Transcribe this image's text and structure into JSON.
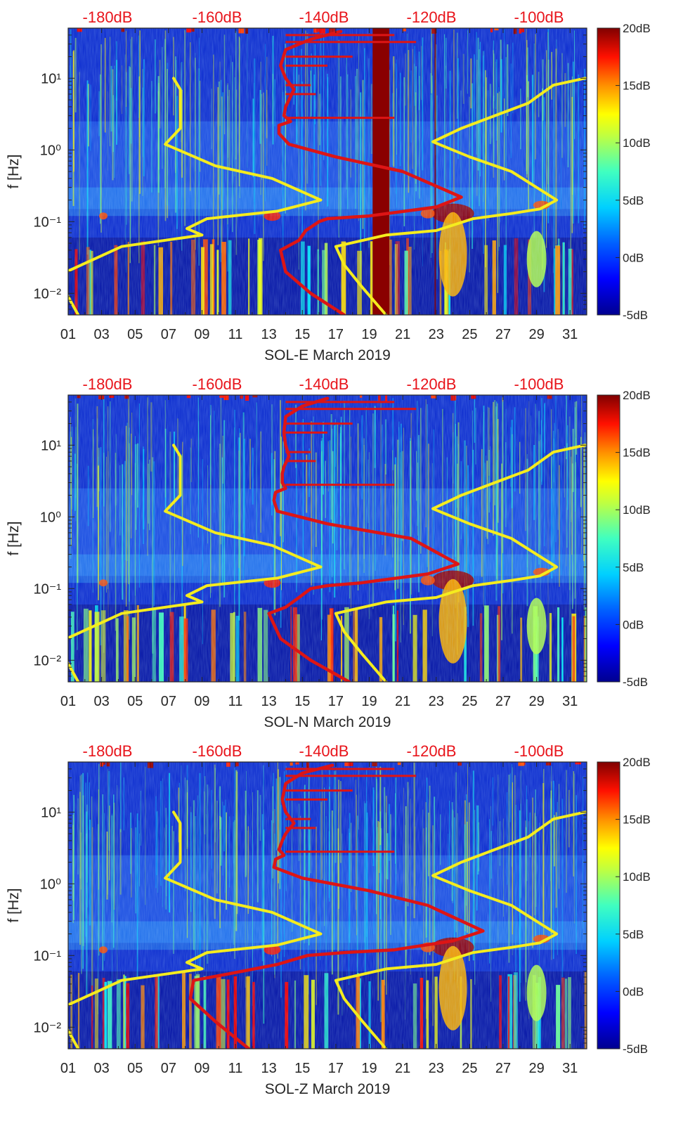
{
  "colors": {
    "jet": [
      "#00008f",
      "#0000ff",
      "#0080ff",
      "#00ffff",
      "#80ff80",
      "#ffff00",
      "#ff8000",
      "#ff0000",
      "#800000"
    ],
    "background": "#1030d0",
    "yellow_line": "#f5ec1e",
    "red_line": "#dd1515",
    "db_text": "#e8141b"
  },
  "chart_data": [
    {
      "type": "heatmap",
      "title": "",
      "xlabel": "SOL-E March 2019",
      "ylabel": "f [Hz]",
      "xlim": [
        1,
        32
      ],
      "ylim": [
        0.005,
        50
      ],
      "yscale": "log",
      "xticks": [
        "01",
        "03",
        "05",
        "07",
        "09",
        "11",
        "13",
        "15",
        "17",
        "19",
        "21",
        "23",
        "25",
        "27",
        "29",
        "31"
      ],
      "yticks": [
        "10⁻²",
        "10⁻¹",
        "10⁰",
        "10¹"
      ],
      "top_labels": [
        "-180dB",
        "-160dB",
        "-140dB",
        "-120dB",
        "-100dB"
      ],
      "colorbar": {
        "range": [
          -5,
          20
        ],
        "labels": [
          "20dB",
          "15dB",
          "10dB",
          "5dB",
          "0dB",
          "-5dB"
        ]
      },
      "saturated_band": {
        "x": [
          19.2,
          20.2
        ],
        "value": 20
      },
      "series": [
        {
          "color": "yellow",
          "x": [
            7.3,
            7.7,
            7.7,
            7.7,
            6.8,
            9.8,
            13.2,
            16.1,
            13.5,
            9.3,
            8.1,
            9.0,
            4.2,
            0.9,
            0.7,
            1.6
          ],
          "y": [
            10,
            7,
            3,
            2,
            1.2,
            0.6,
            0.4,
            0.2,
            0.14,
            0.11,
            0.08,
            0.065,
            0.045,
            0.02,
            0.012,
            0.005
          ]
        },
        {
          "color": "yellow",
          "x": [
            31.9,
            30.0,
            28.5,
            26.5,
            24.5,
            22.8,
            25.0,
            27.5,
            30.2,
            29.2,
            27.5,
            25.2,
            23.0,
            20.0,
            17.0,
            17.5,
            18.6,
            20.0
          ],
          "y": [
            10,
            8,
            4.5,
            3,
            2,
            1.3,
            0.8,
            0.5,
            0.2,
            0.15,
            0.13,
            0.11,
            0.075,
            0.065,
            0.045,
            0.025,
            0.012,
            0.005
          ]
        },
        {
          "color": "red",
          "x": [
            17.3,
            15.5,
            14.0,
            13.7,
            14.0,
            14.5,
            14.2,
            14.0,
            13.9,
            14.3,
            13.6,
            13.6,
            14.2,
            17.0,
            21.0,
            24.5,
            23.0,
            19.0,
            16.5,
            16.0,
            15.2,
            14.8,
            13.7,
            14.0,
            15.5,
            17.5
          ],
          "y": [
            45,
            35,
            25,
            15,
            10,
            7,
            5,
            4,
            3,
            2.5,
            2.2,
            1.7,
            1.2,
            0.8,
            0.5,
            0.22,
            0.16,
            0.12,
            0.11,
            0.1,
            0.075,
            0.055,
            0.04,
            0.02,
            0.01,
            0.005
          ]
        }
      ]
    },
    {
      "type": "heatmap",
      "title": "",
      "xlabel": "SOL-N March 2019",
      "ylabel": "f [Hz]",
      "xlim": [
        1,
        32
      ],
      "ylim": [
        0.005,
        50
      ],
      "yscale": "log",
      "xticks": [
        "01",
        "03",
        "05",
        "07",
        "09",
        "11",
        "13",
        "15",
        "17",
        "19",
        "21",
        "23",
        "25",
        "27",
        "29",
        "31"
      ],
      "yticks": [
        "10⁻²",
        "10⁻¹",
        "10⁰",
        "10¹"
      ],
      "top_labels": [
        "-180dB",
        "-160dB",
        "-140dB",
        "-120dB",
        "-100dB"
      ],
      "colorbar": {
        "range": [
          -5,
          20
        ],
        "labels": [
          "20dB",
          "15dB",
          "10dB",
          "5dB",
          "0dB",
          "-5dB"
        ]
      },
      "series": [
        {
          "color": "yellow",
          "x": [
            7.3,
            7.7,
            7.7,
            7.7,
            6.8,
            9.8,
            13.2,
            16.1,
            13.5,
            9.3,
            8.1,
            9.0,
            4.2,
            0.9,
            0.7,
            1.6
          ],
          "y": [
            10,
            7,
            3,
            2,
            1.2,
            0.6,
            0.4,
            0.2,
            0.14,
            0.11,
            0.08,
            0.065,
            0.045,
            0.02,
            0.012,
            0.005
          ]
        },
        {
          "color": "yellow",
          "x": [
            31.9,
            30.0,
            28.5,
            26.5,
            24.5,
            22.8,
            25.0,
            27.5,
            30.2,
            29.2,
            27.5,
            25.2,
            23.0,
            20.0,
            17.0,
            17.5,
            18.6,
            20.0
          ],
          "y": [
            10,
            8,
            4.5,
            3,
            2,
            1.3,
            0.8,
            0.5,
            0.2,
            0.15,
            0.13,
            0.11,
            0.075,
            0.065,
            0.045,
            0.025,
            0.012,
            0.005
          ]
        },
        {
          "color": "red",
          "x": [
            16.5,
            15.0,
            14.0,
            13.9,
            14.0,
            14.2,
            13.9,
            13.8,
            13.8,
            14.0,
            13.4,
            13.3,
            13.5,
            16.5,
            21.5,
            24.3,
            22.5,
            18.5,
            16.5,
            15.5,
            14.8,
            14.0,
            13.0,
            13.7,
            15.5,
            17.8
          ],
          "y": [
            45,
            35,
            25,
            15,
            10,
            7,
            5,
            4,
            3,
            2.5,
            2.2,
            1.7,
            1.2,
            0.8,
            0.5,
            0.22,
            0.16,
            0.12,
            0.11,
            0.1,
            0.075,
            0.055,
            0.045,
            0.02,
            0.01,
            0.005
          ]
        }
      ]
    },
    {
      "type": "heatmap",
      "title": "",
      "xlabel": "SOL-Z March 2019",
      "ylabel": "f [Hz]",
      "xlim": [
        1,
        32
      ],
      "ylim": [
        0.005,
        50
      ],
      "yscale": "log",
      "xticks": [
        "01",
        "03",
        "05",
        "07",
        "09",
        "11",
        "13",
        "15",
        "17",
        "19",
        "21",
        "23",
        "25",
        "27",
        "29",
        "31"
      ],
      "yticks": [
        "10⁻²",
        "10⁻¹",
        "10⁰",
        "10¹"
      ],
      "top_labels": [
        "-180dB",
        "-160dB",
        "-140dB",
        "-120dB",
        "-100dB"
      ],
      "colorbar": {
        "range": [
          -5,
          20
        ],
        "labels": [
          "20dB",
          "15dB",
          "10dB",
          "5dB",
          "0dB",
          "-5dB"
        ]
      },
      "series": [
        {
          "color": "yellow",
          "x": [
            7.3,
            7.7,
            7.7,
            7.7,
            6.8,
            9.8,
            13.2,
            16.1,
            13.5,
            9.3,
            8.1,
            9.0,
            4.2,
            0.9,
            0.7,
            1.6
          ],
          "y": [
            10,
            7,
            3,
            2,
            1.2,
            0.6,
            0.4,
            0.2,
            0.14,
            0.11,
            0.08,
            0.065,
            0.045,
            0.02,
            0.012,
            0.005
          ]
        },
        {
          "color": "yellow",
          "x": [
            31.9,
            30.0,
            28.5,
            26.5,
            24.5,
            22.8,
            25.0,
            27.5,
            30.2,
            29.2,
            27.5,
            25.2,
            23.0,
            20.0,
            17.0,
            17.5,
            18.6,
            20.0
          ],
          "y": [
            10,
            8,
            4.5,
            3,
            2,
            1.3,
            0.8,
            0.5,
            0.2,
            0.15,
            0.13,
            0.11,
            0.075,
            0.065,
            0.045,
            0.025,
            0.012,
            0.005
          ]
        },
        {
          "color": "red",
          "x": [
            16.8,
            15.0,
            14.0,
            13.8,
            14.0,
            14.5,
            14.0,
            13.8,
            13.6,
            13.9,
            13.4,
            13.3,
            15.0,
            19.0,
            22.5,
            25.8,
            24.0,
            20.5,
            17.5,
            15.3,
            13.5,
            10.5,
            8.5,
            8.3,
            9.8,
            11.8
          ],
          "y": [
            45,
            35,
            25,
            15,
            10,
            7,
            5,
            4,
            3,
            2.5,
            2.2,
            1.7,
            1.2,
            0.8,
            0.5,
            0.22,
            0.16,
            0.12,
            0.11,
            0.1,
            0.075,
            0.055,
            0.045,
            0.025,
            0.012,
            0.005
          ]
        }
      ]
    }
  ]
}
